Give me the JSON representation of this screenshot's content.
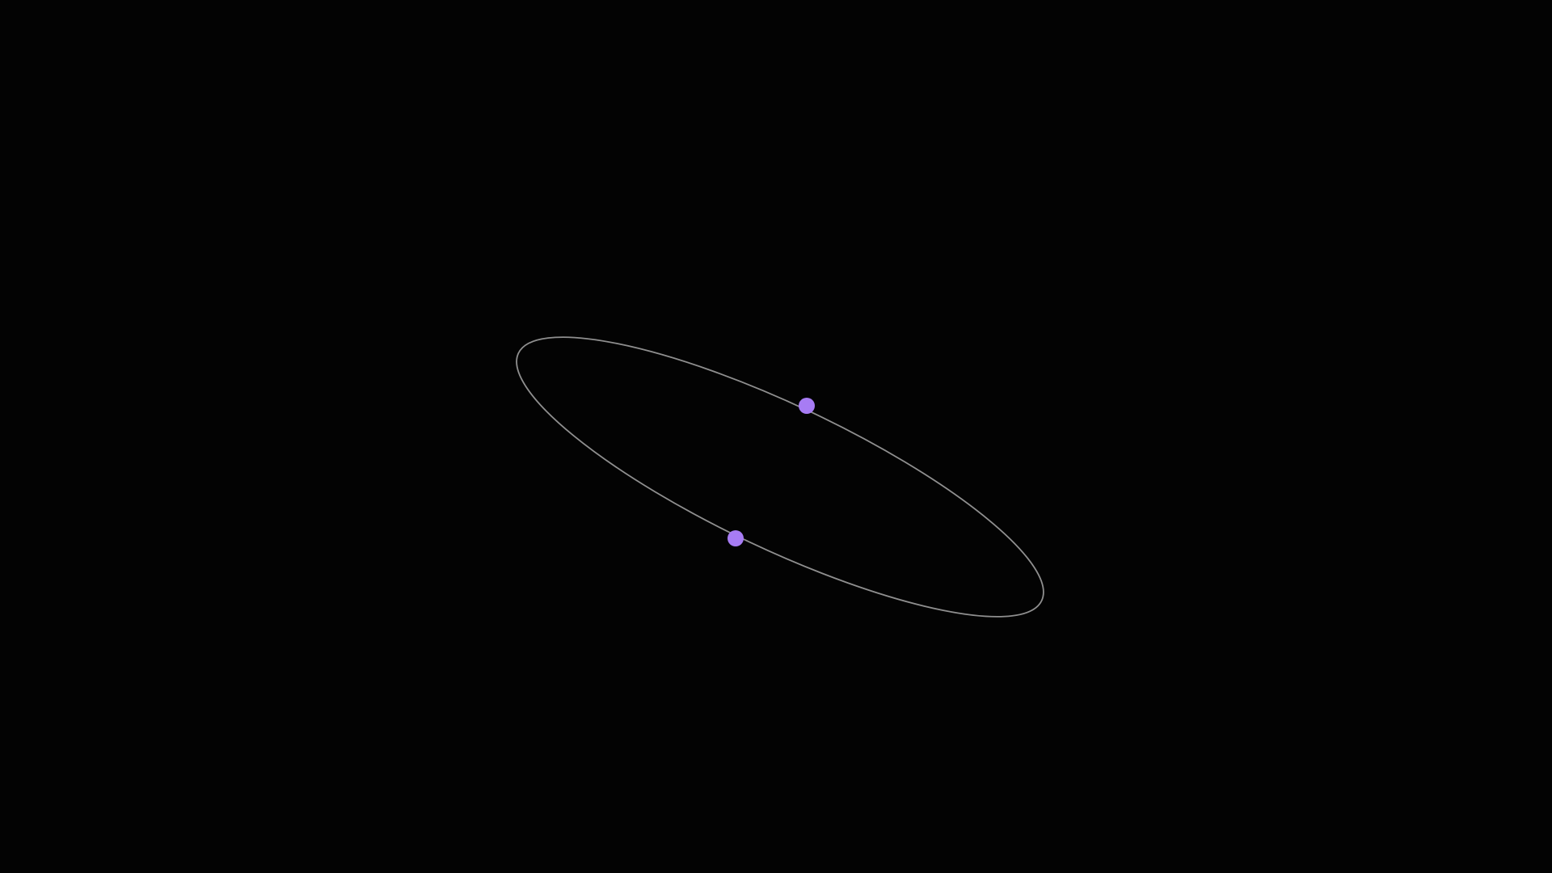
{
  "scene": {
    "background_color": "#030303",
    "orbit_color": "#8f8f8f",
    "node_color": "#a77cf4",
    "node_count": 2
  }
}
